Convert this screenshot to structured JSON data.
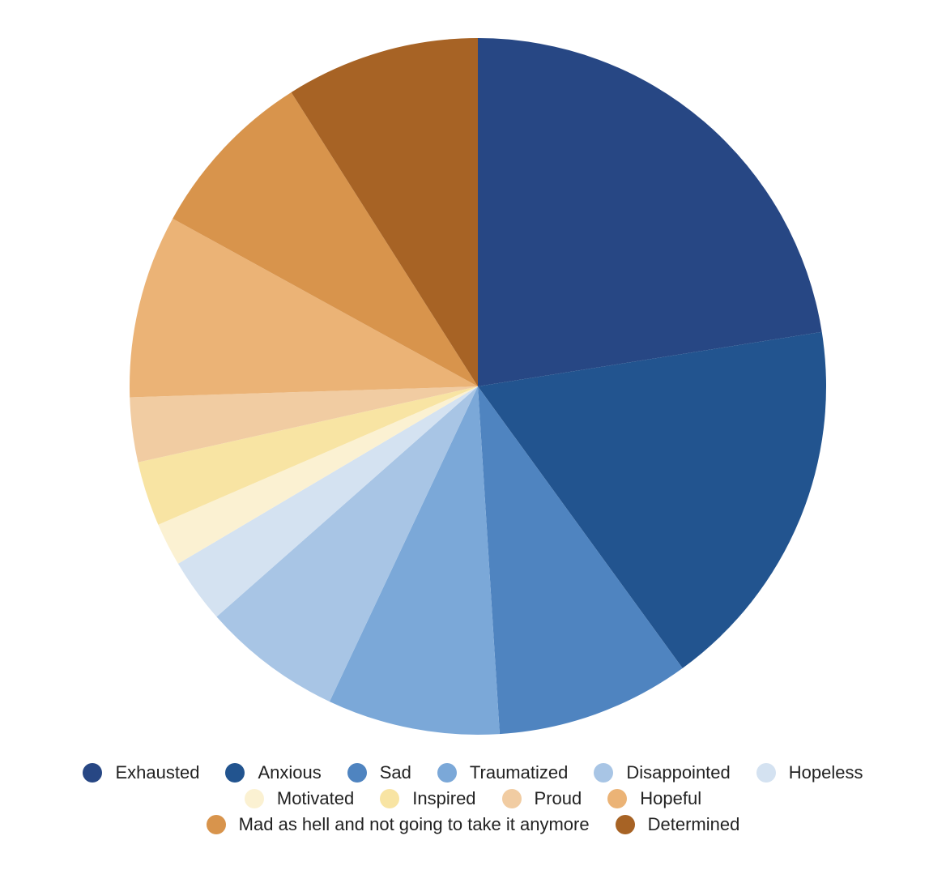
{
  "chart_data": {
    "type": "pie",
    "title": "",
    "slices": [
      {
        "label": "Exhausted",
        "value": 22.5,
        "color": "#274784"
      },
      {
        "label": "Anxious",
        "value": 17.5,
        "color": "#22548f"
      },
      {
        "label": "Sad",
        "value": 9,
        "color": "#4f84c0"
      },
      {
        "label": "Traumatized",
        "value": 8,
        "color": "#7ba8d8"
      },
      {
        "label": "Disappointed",
        "value": 6.5,
        "color": "#a8c5e5"
      },
      {
        "label": "Hopeless",
        "value": 3,
        "color": "#d4e2f1"
      },
      {
        "label": "Motivated",
        "value": 2,
        "color": "#fbf1d2"
      },
      {
        "label": "Inspired",
        "value": 3,
        "color": "#f8e4a3"
      },
      {
        "label": "Proud",
        "value": 3,
        "color": "#f1cca2"
      },
      {
        "label": "Hopeful",
        "value": 8.5,
        "color": "#ebb376"
      },
      {
        "label": "Mad as hell and not going to take it anymore",
        "value": 8,
        "color": "#d8944c"
      },
      {
        "label": "Determined",
        "value": 9,
        "color": "#a76325"
      }
    ],
    "legend_position": "bottom"
  }
}
